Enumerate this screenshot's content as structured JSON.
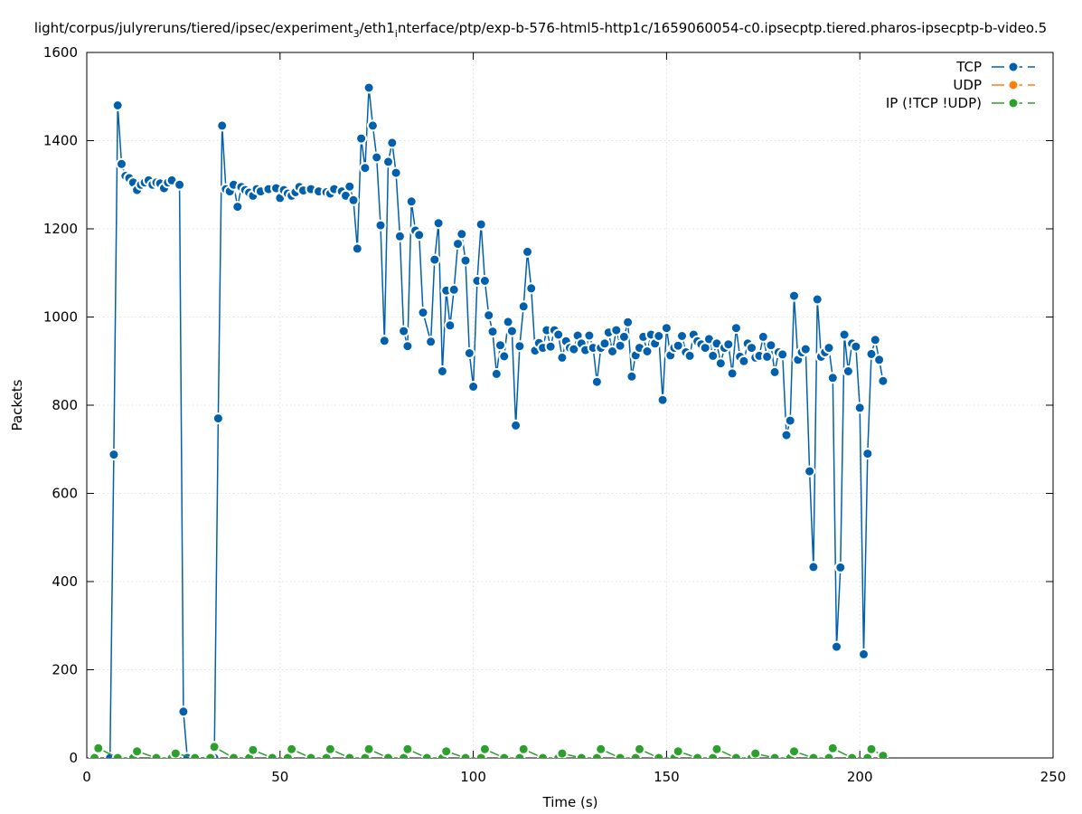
{
  "chart_data": {
    "type": "line",
    "title": "light/corpus/julyreruns/tiered/ipsec/experiment",
    "title_sub": "3",
    "title_mid": "/eth1",
    "title_sub2": "i",
    "title_tail": "nterface/ptp/exp-b-576-html5-http1c/1659060054-c0.ipsecptp.tiered.pharos-ipsecptp-b-video.5",
    "xlabel": "Time (s)",
    "ylabel": "Packets",
    "xlim": [
      0,
      250
    ],
    "ylim": [
      0,
      1600
    ],
    "xticks": [
      0,
      50,
      100,
      150,
      200,
      250
    ],
    "yticks": [
      0,
      200,
      400,
      600,
      800,
      1000,
      1200,
      1400,
      1600
    ],
    "grid": true,
    "legend_position": "top-right",
    "series": [
      {
        "name": "TCP",
        "color": "#0060ad",
        "points": [
          [
            6,
            0
          ],
          [
            7,
            688
          ],
          [
            8,
            1480
          ],
          [
            9,
            1347
          ],
          [
            10,
            1320
          ],
          [
            11,
            1315
          ],
          [
            12,
            1305
          ],
          [
            13,
            1288
          ],
          [
            14,
            1300
          ],
          [
            15,
            1305
          ],
          [
            16,
            1310
          ],
          [
            17,
            1300
          ],
          [
            18,
            1305
          ],
          [
            19,
            1303
          ],
          [
            20,
            1292
          ],
          [
            21,
            1305
          ],
          [
            22,
            1310
          ],
          [
            24,
            1300
          ],
          [
            25,
            105
          ],
          [
            26,
            0
          ],
          [
            33,
            0
          ],
          [
            34,
            770
          ],
          [
            35,
            1434
          ],
          [
            36,
            1290
          ],
          [
            37,
            1285
          ],
          [
            38,
            1300
          ],
          [
            39,
            1250
          ],
          [
            40,
            1295
          ],
          [
            41,
            1288
          ],
          [
            42,
            1282
          ],
          [
            43,
            1275
          ],
          [
            44,
            1290
          ],
          [
            45,
            1285
          ],
          [
            47,
            1290
          ],
          [
            49,
            1292
          ],
          [
            50,
            1270
          ],
          [
            51,
            1288
          ],
          [
            52,
            1280
          ],
          [
            53,
            1275
          ],
          [
            54,
            1283
          ],
          [
            55,
            1295
          ],
          [
            56,
            1287
          ],
          [
            58,
            1290
          ],
          [
            60,
            1285
          ],
          [
            62,
            1283
          ],
          [
            63,
            1280
          ],
          [
            64,
            1290
          ],
          [
            66,
            1285
          ],
          [
            67,
            1275
          ],
          [
            68,
            1296
          ],
          [
            69,
            1265
          ],
          [
            70,
            1155
          ],
          [
            71,
            1405
          ],
          [
            72,
            1338
          ],
          [
            73,
            1520
          ],
          [
            74,
            1434
          ],
          [
            75,
            1362
          ],
          [
            76,
            1208
          ],
          [
            77,
            946
          ],
          [
            78,
            1352
          ],
          [
            79,
            1395
          ],
          [
            80,
            1327
          ],
          [
            81,
            1183
          ],
          [
            82,
            968
          ],
          [
            83,
            934
          ],
          [
            84,
            1262
          ],
          [
            85,
            1196
          ],
          [
            86,
            1186
          ],
          [
            87,
            1010
          ],
          [
            89,
            944
          ],
          [
            90,
            1130
          ],
          [
            91,
            1213
          ],
          [
            92,
            877
          ],
          [
            93,
            1060
          ],
          [
            94,
            981
          ],
          [
            95,
            1062
          ],
          [
            96,
            1166
          ],
          [
            97,
            1188
          ],
          [
            98,
            1128
          ],
          [
            99,
            918
          ],
          [
            100,
            842
          ],
          [
            101,
            1082
          ],
          [
            102,
            1210
          ],
          [
            103,
            1082
          ],
          [
            104,
            1004
          ],
          [
            105,
            967
          ],
          [
            106,
            871
          ],
          [
            107,
            936
          ],
          [
            108,
            911
          ],
          [
            109,
            989
          ],
          [
            110,
            968
          ],
          [
            111,
            754
          ],
          [
            112,
            934
          ],
          [
            113,
            1024
          ],
          [
            114,
            1148
          ],
          [
            115,
            1065
          ],
          [
            116,
            924
          ],
          [
            117,
            941
          ],
          [
            118,
            930
          ],
          [
            119,
            970
          ],
          [
            120,
            933
          ],
          [
            121,
            970
          ],
          [
            122,
            960
          ],
          [
            123,
            908
          ],
          [
            124,
            945
          ],
          [
            125,
            930
          ],
          [
            126,
            927
          ],
          [
            127,
            958
          ],
          [
            128,
            940
          ],
          [
            129,
            925
          ],
          [
            130,
            958
          ],
          [
            131,
            930
          ],
          [
            132,
            853
          ],
          [
            133,
            930
          ],
          [
            134,
            940
          ],
          [
            135,
            965
          ],
          [
            136,
            922
          ],
          [
            137,
            970
          ],
          [
            138,
            935
          ],
          [
            139,
            955
          ],
          [
            140,
            988
          ],
          [
            141,
            865
          ],
          [
            142,
            913
          ],
          [
            143,
            930
          ],
          [
            144,
            955
          ],
          [
            145,
            922
          ],
          [
            146,
            960
          ],
          [
            147,
            940
          ],
          [
            148,
            957
          ],
          [
            149,
            812
          ],
          [
            150,
            975
          ],
          [
            151,
            913
          ],
          [
            152,
            930
          ],
          [
            153,
            935
          ],
          [
            154,
            957
          ],
          [
            155,
            920
          ],
          [
            156,
            912
          ],
          [
            157,
            960
          ],
          [
            158,
            945
          ],
          [
            159,
            938
          ],
          [
            160,
            930
          ],
          [
            161,
            950
          ],
          [
            162,
            912
          ],
          [
            163,
            940
          ],
          [
            164,
            895
          ],
          [
            165,
            930
          ],
          [
            166,
            938
          ],
          [
            167,
            872
          ],
          [
            168,
            975
          ],
          [
            169,
            910
          ],
          [
            170,
            900
          ],
          [
            171,
            940
          ],
          [
            172,
            930
          ],
          [
            173,
            908
          ],
          [
            174,
            912
          ],
          [
            175,
            955
          ],
          [
            176,
            910
          ],
          [
            177,
            936
          ],
          [
            178,
            875
          ],
          [
            179,
            920
          ],
          [
            180,
            915
          ],
          [
            181,
            732
          ],
          [
            182,
            765
          ],
          [
            183,
            1048
          ],
          [
            184,
            903
          ],
          [
            185,
            920
          ],
          [
            186,
            927
          ],
          [
            187,
            650
          ],
          [
            188,
            433
          ],
          [
            189,
            1040
          ],
          [
            190,
            910
          ],
          [
            191,
            920
          ],
          [
            192,
            930
          ],
          [
            193,
            862
          ],
          [
            194,
            252
          ],
          [
            195,
            432
          ],
          [
            196,
            960
          ],
          [
            197,
            877
          ],
          [
            198,
            940
          ],
          [
            199,
            933
          ],
          [
            200,
            794
          ],
          [
            201,
            235
          ],
          [
            202,
            690
          ],
          [
            203,
            916
          ],
          [
            204,
            948
          ],
          [
            205,
            903
          ],
          [
            206,
            855
          ]
        ]
      },
      {
        "name": "UDP",
        "color": "#ff7f0e",
        "points": []
      },
      {
        "name": "IP (!TCP  !UDP)",
        "color": "#2ca02c",
        "points": [
          [
            2,
            0
          ],
          [
            3,
            22
          ],
          [
            8,
            0
          ],
          [
            12,
            0
          ],
          [
            13,
            15
          ],
          [
            18,
            0
          ],
          [
            22,
            0
          ],
          [
            23,
            10
          ],
          [
            28,
            0
          ],
          [
            32,
            0
          ],
          [
            33,
            25
          ],
          [
            38,
            0
          ],
          [
            42,
            0
          ],
          [
            43,
            18
          ],
          [
            48,
            0
          ],
          [
            52,
            0
          ],
          [
            53,
            20
          ],
          [
            58,
            0
          ],
          [
            62,
            0
          ],
          [
            63,
            20
          ],
          [
            68,
            0
          ],
          [
            72,
            0
          ],
          [
            73,
            20
          ],
          [
            78,
            0
          ],
          [
            82,
            0
          ],
          [
            83,
            20
          ],
          [
            88,
            0
          ],
          [
            92,
            0
          ],
          [
            93,
            15
          ],
          [
            98,
            0
          ],
          [
            102,
            0
          ],
          [
            103,
            20
          ],
          [
            108,
            0
          ],
          [
            112,
            0
          ],
          [
            113,
            20
          ],
          [
            118,
            0
          ],
          [
            122,
            0
          ],
          [
            123,
            10
          ],
          [
            128,
            0
          ],
          [
            132,
            0
          ],
          [
            133,
            20
          ],
          [
            138,
            0
          ],
          [
            142,
            0
          ],
          [
            143,
            20
          ],
          [
            148,
            0
          ],
          [
            152,
            0
          ],
          [
            153,
            15
          ],
          [
            158,
            0
          ],
          [
            162,
            0
          ],
          [
            163,
            20
          ],
          [
            168,
            0
          ],
          [
            172,
            0
          ],
          [
            173,
            10
          ],
          [
            178,
            0
          ],
          [
            182,
            0
          ],
          [
            183,
            15
          ],
          [
            188,
            0
          ],
          [
            192,
            0
          ],
          [
            193,
            22
          ],
          [
            198,
            0
          ],
          [
            202,
            0
          ],
          [
            203,
            20
          ],
          [
            206,
            5
          ]
        ]
      }
    ]
  }
}
